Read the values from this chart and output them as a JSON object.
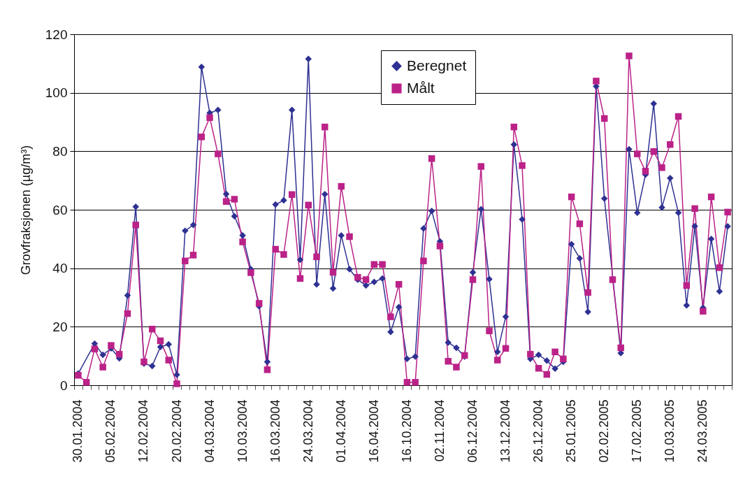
{
  "chart_data": {
    "type": "line",
    "ylabel": "Grovfraksjonen (µg/m³)",
    "categories": [
      "30.01.2004",
      null,
      null,
      null,
      "05.02.2004",
      null,
      null,
      null,
      "12.02.2004",
      null,
      null,
      null,
      "20.02.2004",
      null,
      null,
      null,
      "04.03.2004",
      null,
      null,
      null,
      "10.03.2004",
      null,
      null,
      null,
      "16.03.2004",
      null,
      null,
      null,
      "24.03.2004",
      null,
      null,
      null,
      "01.04.2004",
      null,
      null,
      null,
      "16.04.2004",
      null,
      null,
      null,
      "16.10.2004",
      null,
      null,
      null,
      "02.11.2004",
      null,
      null,
      null,
      "06.12.2004",
      null,
      null,
      null,
      "13.12.2004",
      null,
      null,
      null,
      "26.12.2004",
      null,
      null,
      null,
      "25.01.2005",
      null,
      null,
      null,
      "02.02.2005",
      null,
      null,
      null,
      "17.02.2005",
      null,
      null,
      null,
      "10.03.2005",
      null,
      null,
      null,
      "24.03.2005",
      null,
      null,
      null
    ],
    "series": [
      {
        "name": "Beregnet",
        "color": "#2e3192",
        "marker": "diamond",
        "values": [
          4,
          null,
          14.2,
          10.4,
          12.6,
          9.2,
          30.7,
          61,
          7.4,
          6.6,
          13.1,
          14,
          3.6,
          52.8,
          54.8,
          108.8,
          93.1,
          94.1,
          65.4,
          57.8,
          51.2,
          39.7,
          27,
          8,
          61.8,
          63.2,
          94.1,
          42.9,
          111.6,
          34.5,
          65.3,
          33.1,
          51.2,
          39.7,
          36.1,
          34.1,
          35.3,
          36.5,
          18.2,
          26.7,
          9,
          9.8,
          53.6,
          59.6,
          49.2,
          14.6,
          12.8,
          9.8,
          38.6,
          60.2,
          36.3,
          11.4,
          23.4,
          82.3,
          56.7,
          9,
          10.4,
          8.4,
          5.7,
          8,
          48.2,
          43.4,
          25.1,
          102.2,
          63.8,
          null,
          11,
          80.7,
          59,
          72,
          96.3,
          60.8,
          70.8,
          59,
          27.3,
          54.4,
          26.5,
          50,
          32.1,
          54.3
        ]
      },
      {
        "name": "Målt",
        "color": "#bb2288",
        "marker": "square",
        "values": [
          3.4,
          1,
          12.4,
          6.2,
          13.6,
          10.6,
          24.5,
          54.8,
          8,
          19.2,
          15.2,
          8.6,
          0.5,
          42.5,
          44.5,
          84.9,
          91.5,
          79.1,
          62.8,
          63.6,
          49,
          38.5,
          28,
          5.3,
          46.5,
          44.7,
          65.2,
          36.5,
          61.6,
          43.9,
          88.3,
          38.6,
          68,
          50.8,
          36.9,
          36.1,
          41.3,
          41.3,
          23.4,
          34.5,
          1,
          1,
          42.5,
          77.5,
          47.6,
          8.2,
          6.2,
          10.2,
          36.1,
          74.8,
          18.6,
          8.6,
          12.6,
          88.3,
          75.1,
          10.6,
          5.8,
          3.7,
          11.4,
          9,
          64.4,
          55.2,
          31.7,
          104,
          91.2,
          36.1,
          12.8,
          112.6,
          79.1,
          73.2,
          79.9,
          74.4,
          82.3,
          91.9,
          34.1,
          60.4,
          25.3,
          64.4,
          40.2,
          59.2
        ]
      }
    ],
    "ylim": [
      0,
      120
    ],
    "yticks": [
      0,
      20,
      40,
      60,
      80,
      100,
      120
    ],
    "grid": "y",
    "legend": "top right"
  }
}
